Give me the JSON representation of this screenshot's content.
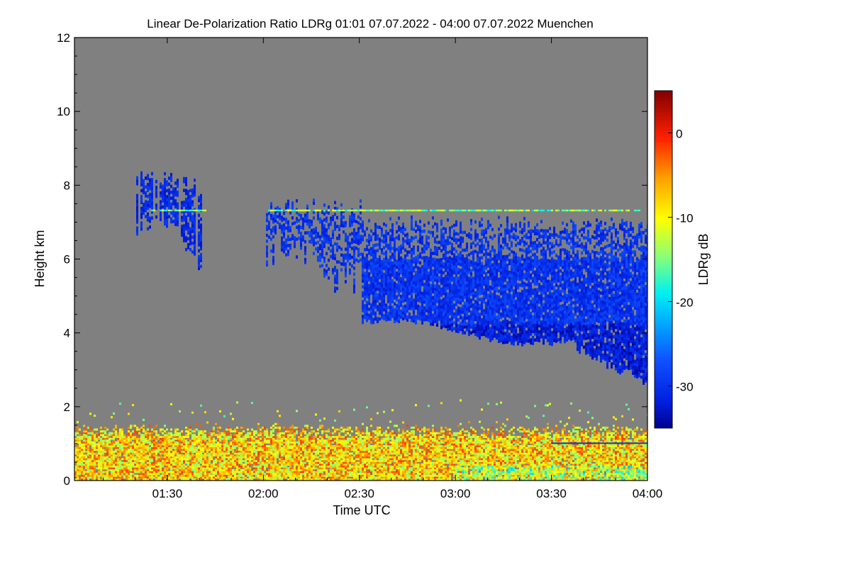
{
  "chart_data": {
    "type": "heatmap",
    "title": "Linear De-Polarization Ratio LDRg   01:01 07.07.2022 - 04:00 07.07.2022 Muenchen",
    "xlabel": "Time UTC",
    "ylabel": "Height km",
    "colorbar_label": "LDRg dB",
    "xlim_minutes": [
      61,
      240
    ],
    "ylim_km": [
      0,
      12
    ],
    "x_ticks": [
      {
        "minutes": 90,
        "label": "01:30"
      },
      {
        "minutes": 120,
        "label": "02:00"
      },
      {
        "minutes": 150,
        "label": "02:30"
      },
      {
        "minutes": 180,
        "label": "03:00"
      },
      {
        "minutes": 210,
        "label": "03:30"
      },
      {
        "minutes": 240,
        "label": "04:00"
      }
    ],
    "y_ticks": [
      {
        "value": 0,
        "label": "0"
      },
      {
        "value": 2,
        "label": "2"
      },
      {
        "value": 4,
        "label": "4"
      },
      {
        "value": 6,
        "label": "6"
      },
      {
        "value": 8,
        "label": "8"
      },
      {
        "value": 10,
        "label": "10"
      },
      {
        "value": 12,
        "label": "12"
      }
    ],
    "colorbar_range_db": [
      -35,
      5
    ],
    "colorbar_ticks": [
      {
        "value": 0,
        "label": "0"
      },
      {
        "value": -10,
        "label": "-10"
      },
      {
        "value": -20,
        "label": "-20"
      },
      {
        "value": -30,
        "label": "-30"
      }
    ],
    "background_color": "#808080",
    "features": [
      {
        "name": "cirrus-early",
        "t_start": 80,
        "t_end": 101,
        "base_km": 5.7,
        "top_km": 8.6,
        "ldr_db": -31
      },
      {
        "name": "cirrus-main",
        "t_start": 121,
        "t_end": 240,
        "base_km": 2.6,
        "top_km": 7.6,
        "ldr_db": -30
      },
      {
        "name": "boundary-layer",
        "t_start": 61,
        "t_end": 240,
        "base_km": 0.0,
        "top_km": 1.6,
        "ldr_db": -8
      },
      {
        "name": "layer-7.3km",
        "t_start": 84,
        "t_end": 238,
        "base_km": 7.28,
        "top_km": 7.34,
        "ldr_db": -15
      }
    ]
  }
}
